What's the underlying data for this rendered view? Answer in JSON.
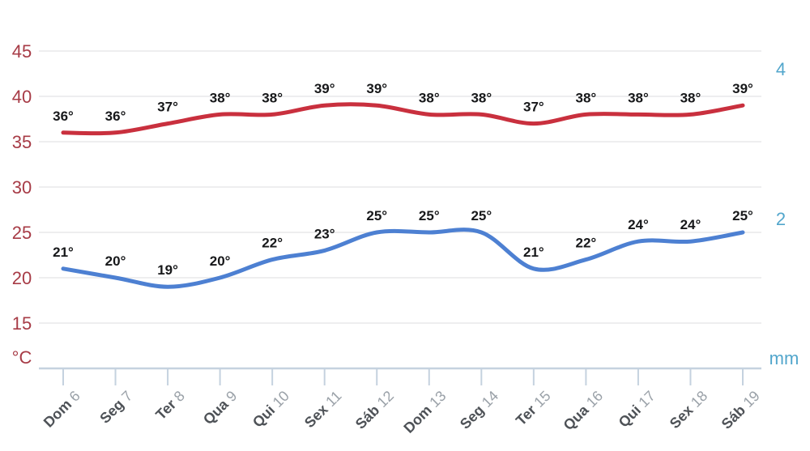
{
  "chart_data": {
    "type": "line",
    "title": "",
    "categories": [
      "Dom 6",
      "Seg 7",
      "Ter 8",
      "Qua 9",
      "Qui 10",
      "Sex 11",
      "Sáb 12",
      "Dom 13",
      "Seg 14",
      "Ter 15",
      "Qua 16",
      "Qui 17",
      "Sex 18",
      "Sáb 19"
    ],
    "series": [
      {
        "name": "temperatura-maxima",
        "color": "#c9303e",
        "values": [
          36,
          36,
          37,
          38,
          38,
          39,
          39,
          38,
          38,
          37,
          38,
          38,
          38,
          39
        ],
        "data_label_suffix": "°"
      },
      {
        "name": "temperatura-minima",
        "color": "#4d80d2",
        "values": [
          21,
          20,
          19,
          20,
          22,
          23,
          25,
          25,
          25,
          21,
          22,
          24,
          24,
          25
        ],
        "data_label_suffix": "°"
      }
    ],
    "y_axis_left": {
      "unit": "°C",
      "ticks": [
        45,
        40,
        35,
        30,
        25,
        20,
        15
      ],
      "color": "#a73b46"
    },
    "y_axis_right": {
      "unit": "mm",
      "ticks": [
        4,
        2
      ],
      "color": "#52a6cc"
    },
    "grid": true,
    "legend_position": "none"
  },
  "styles": {
    "background": "#ffffff",
    "grid_color": "#e8e8ea",
    "axis_color": "#c5d2df",
    "data_label_color": "#17181a",
    "day_name_color": "#4e5257",
    "day_number_color": "#9aa1a8"
  }
}
